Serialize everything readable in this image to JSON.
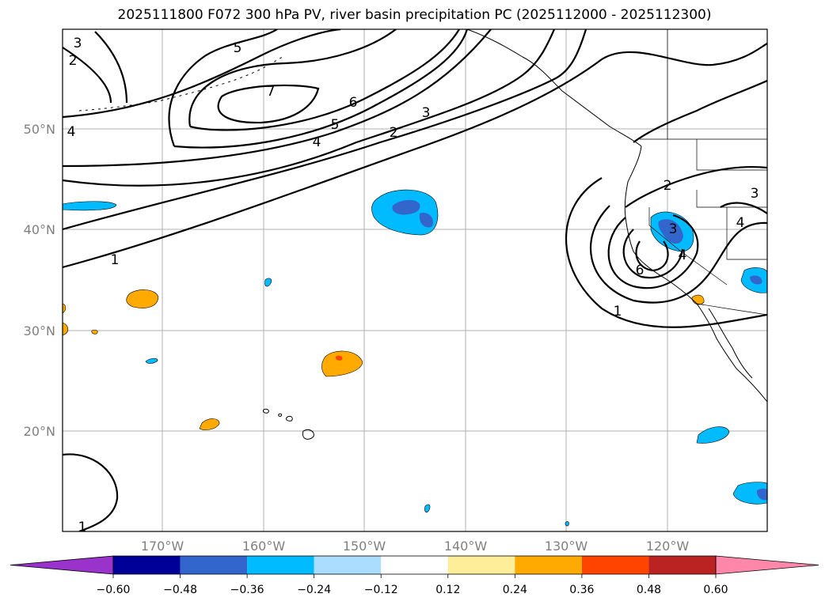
{
  "title": "2025111800 F072 300 hPa PV, river basin precipitation PC (2025112000 - 2025112300)",
  "lat_labels": [
    "50°N",
    "40°N",
    "30°N",
    "20°N"
  ],
  "lon_labels": [
    "170°W",
    "160°W",
    "150°W",
    "140°W",
    "130°W",
    "120°W"
  ],
  "colorbar": {
    "ticks": [
      "−0.60",
      "−0.48",
      "−0.36",
      "−0.24",
      "−0.12",
      "0.12",
      "0.24",
      "0.36",
      "0.48",
      "0.60"
    ],
    "colors": [
      "#9933cc",
      "#000099",
      "#3366cc",
      "#00bbff",
      "#aaddff",
      "#ffffff",
      "#ffee99",
      "#ffaa00",
      "#ff4400",
      "#bb2222",
      "#ff88aa"
    ]
  },
  "pv_contour_labels": [
    "3",
    "2",
    "4",
    "5",
    "7",
    "6",
    "5",
    "4",
    "3",
    "2",
    "1",
    "2",
    "3",
    "4",
    "6",
    "4",
    "3",
    "1",
    "1"
  ],
  "colors": {
    "blue_shade": "#00bbff",
    "dark_blue_shade": "#3366cc",
    "orange_shade": "#ffaa00",
    "red_shade": "#ff4400"
  }
}
